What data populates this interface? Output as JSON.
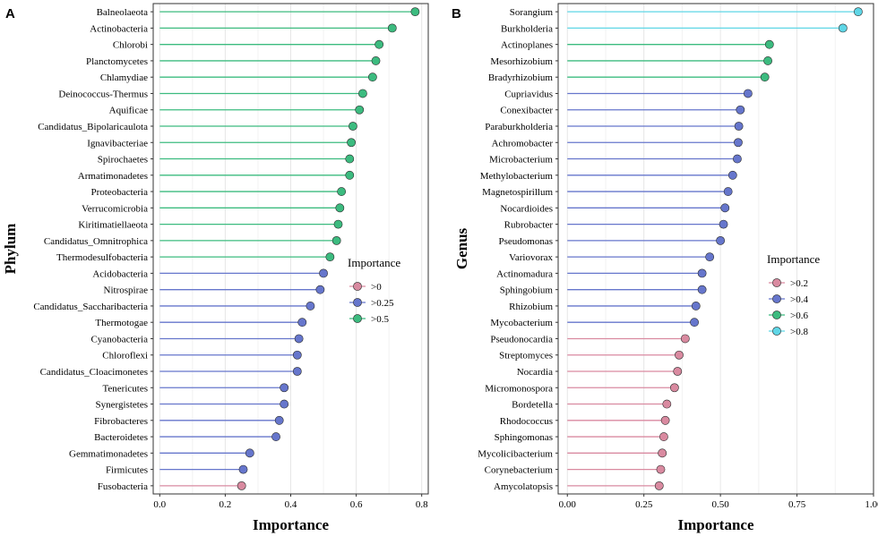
{
  "chart_data": [
    {
      "type": "lollipop",
      "panel_label": "A",
      "xlabel": "Importance",
      "ylabel": "Phylum",
      "xlim": [
        -0.02,
        0.82
      ],
      "xticks": [
        0.0,
        0.2,
        0.4,
        0.6,
        0.8
      ],
      "xtick_labels": [
        "0.0",
        "0.2",
        "0.4",
        "0.6",
        "0.8"
      ],
      "grid": true,
      "legend": {
        "title": "Importance",
        "entries": [
          {
            "label": ">0",
            "color": "#d98aa0"
          },
          {
            "label": ">0.25",
            "color": "#6676cc"
          },
          {
            "label": ">0.5",
            "color": "#3cbb7f"
          }
        ]
      },
      "categories": [
        "Balneolaeota",
        "Actinobacteria",
        "Chlorobi",
        "Planctomycetes",
        "Chlamydiae",
        "Deinococcus-Thermus",
        "Aquificae",
        "Candidatus_Bipolaricaulota",
        "Ignavibacteriae",
        "Spirochaetes",
        "Armatimonadetes",
        "Proteobacteria",
        "Verrucomicrobia",
        "Kiritimatiellaeota",
        "Candidatus_Omnitrophica",
        "Thermodesulfobacteria",
        "Acidobacteria",
        "Nitrospirae",
        "Candidatus_Saccharibacteria",
        "Thermotogae",
        "Cyanobacteria",
        "Chloroflexi",
        "Candidatus_Cloacimonetes",
        "Tenericutes",
        "Synergistetes",
        "Fibrobacteres",
        "Bacteroidetes",
        "Gemmatimonadetes",
        "Firmicutes",
        "Fusobacteria"
      ],
      "values": [
        0.78,
        0.71,
        0.67,
        0.66,
        0.65,
        0.62,
        0.61,
        0.59,
        0.585,
        0.58,
        0.58,
        0.555,
        0.55,
        0.545,
        0.54,
        0.52,
        0.5,
        0.49,
        0.46,
        0.435,
        0.425,
        0.42,
        0.42,
        0.38,
        0.38,
        0.365,
        0.355,
        0.275,
        0.255,
        0.25
      ]
    },
    {
      "type": "lollipop",
      "panel_label": "B",
      "xlabel": "Importance",
      "ylabel": "Genus",
      "xlim": [
        -0.03,
        1.0
      ],
      "xticks": [
        0.0,
        0.25,
        0.5,
        0.75,
        1.0
      ],
      "xtick_labels": [
        "0.00",
        "0.25",
        "0.50",
        "0.75",
        "1.00"
      ],
      "grid": true,
      "legend": {
        "title": "Importance",
        "entries": [
          {
            "label": ">0.2",
            "color": "#d98aa0"
          },
          {
            "label": ">0.4",
            "color": "#6676cc"
          },
          {
            "label": ">0.6",
            "color": "#3cbb7f"
          },
          {
            "label": ">0.8",
            "color": "#5fd6e6"
          }
        ]
      },
      "categories": [
        "Sorangium",
        "Burkholderia",
        "Actinoplanes",
        "Mesorhizobium",
        "Bradyrhizobium",
        "Cupriavidus",
        "Conexibacter",
        "Paraburkholderia",
        "Achromobacter",
        "Microbacterium",
        "Methylobacterium",
        "Magnetospirillum",
        "Nocardioides",
        "Rubrobacter",
        "Pseudomonas",
        "Variovorax",
        "Actinomadura",
        "Sphingobium",
        "Rhizobium",
        "Mycobacterium",
        "Pseudonocardia",
        "Streptomyces",
        "Nocardia",
        "Micromonospora",
        "Bordetella",
        "Rhodococcus",
        "Sphingomonas",
        "Mycolicibacterium",
        "Corynebacterium",
        "Amycolatopsis"
      ],
      "values": [
        0.95,
        0.9,
        0.66,
        0.655,
        0.645,
        0.59,
        0.565,
        0.56,
        0.558,
        0.555,
        0.54,
        0.525,
        0.515,
        0.51,
        0.5,
        0.465,
        0.44,
        0.44,
        0.42,
        0.415,
        0.385,
        0.365,
        0.36,
        0.35,
        0.325,
        0.32,
        0.315,
        0.31,
        0.305,
        0.3
      ]
    }
  ]
}
